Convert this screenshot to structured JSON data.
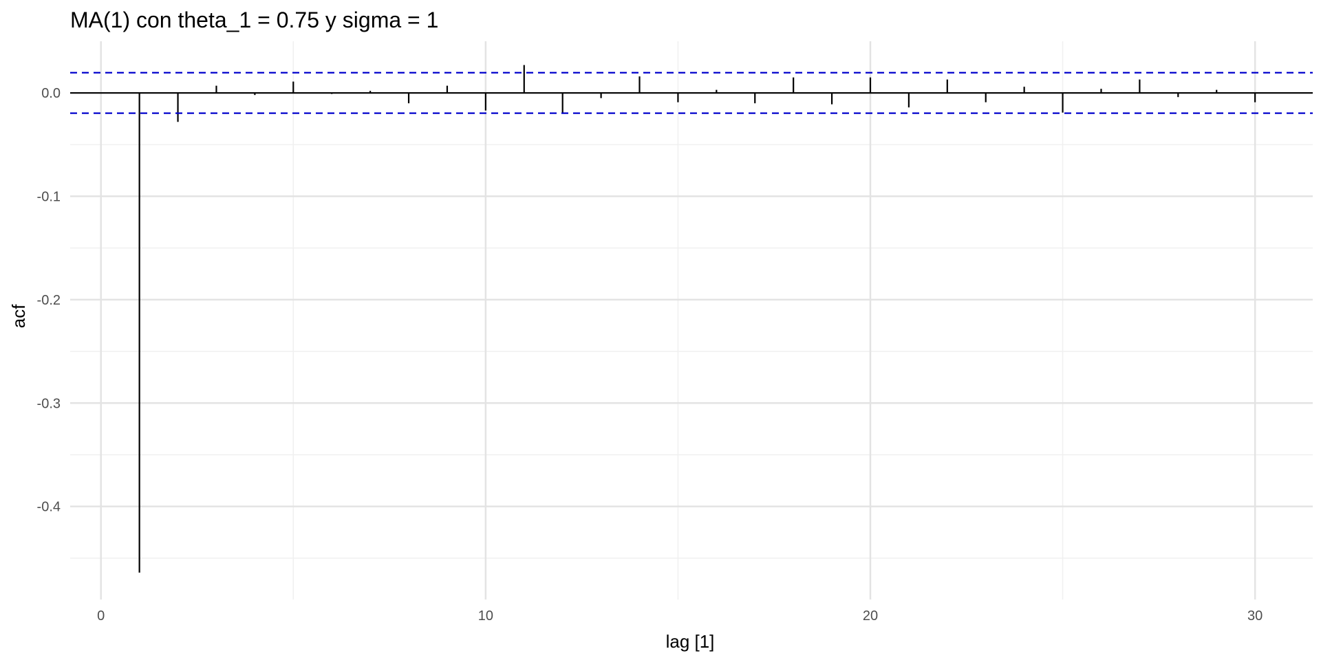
{
  "title": "MA(1) con theta_1 = 0.75 y sigma = 1",
  "xlabel": "lag [1]",
  "ylabel": "acf",
  "colors": {
    "bars": "#000000",
    "confidence": "#0000cc",
    "grid_major": "#e3e3e3",
    "grid_minor": "#f0f0f0",
    "tick_text": "#4d4d4d"
  },
  "chart_data": {
    "type": "bar",
    "title": "MA(1) con theta_1 = 0.75 y sigma = 1",
    "xlabel": "lag [1]",
    "ylabel": "acf",
    "x": [
      1,
      2,
      3,
      4,
      5,
      6,
      7,
      8,
      9,
      10,
      11,
      12,
      13,
      14,
      15,
      16,
      17,
      18,
      19,
      20,
      21,
      22,
      23,
      24,
      25,
      26,
      27,
      28,
      29,
      30
    ],
    "values": [
      -0.464,
      -0.028,
      0.007,
      -0.002,
      0.011,
      -0.001,
      0.002,
      -0.01,
      0.007,
      -0.017,
      0.027,
      -0.019,
      -0.005,
      0.016,
      -0.009,
      0.003,
      -0.01,
      0.015,
      -0.011,
      0.015,
      -0.014,
      0.013,
      -0.009,
      0.006,
      -0.019,
      0.004,
      0.013,
      -0.004,
      0.003,
      -0.009
    ],
    "confidence_bounds": [
      -0.0196,
      0.0196
    ],
    "xlim": [
      -0.8,
      31.5
    ],
    "ylim": [
      -0.49,
      0.05
    ],
    "x_ticks": [
      0,
      10,
      20,
      30
    ],
    "x_tick_labels": [
      "0",
      "10",
      "20",
      "30"
    ],
    "y_ticks": [
      0.0,
      -0.1,
      -0.2,
      -0.3,
      -0.4
    ],
    "y_tick_labels": [
      "0.0",
      "-0.1",
      "-0.2",
      "-0.3",
      "-0.4"
    ],
    "grid": true,
    "legend": "none"
  }
}
